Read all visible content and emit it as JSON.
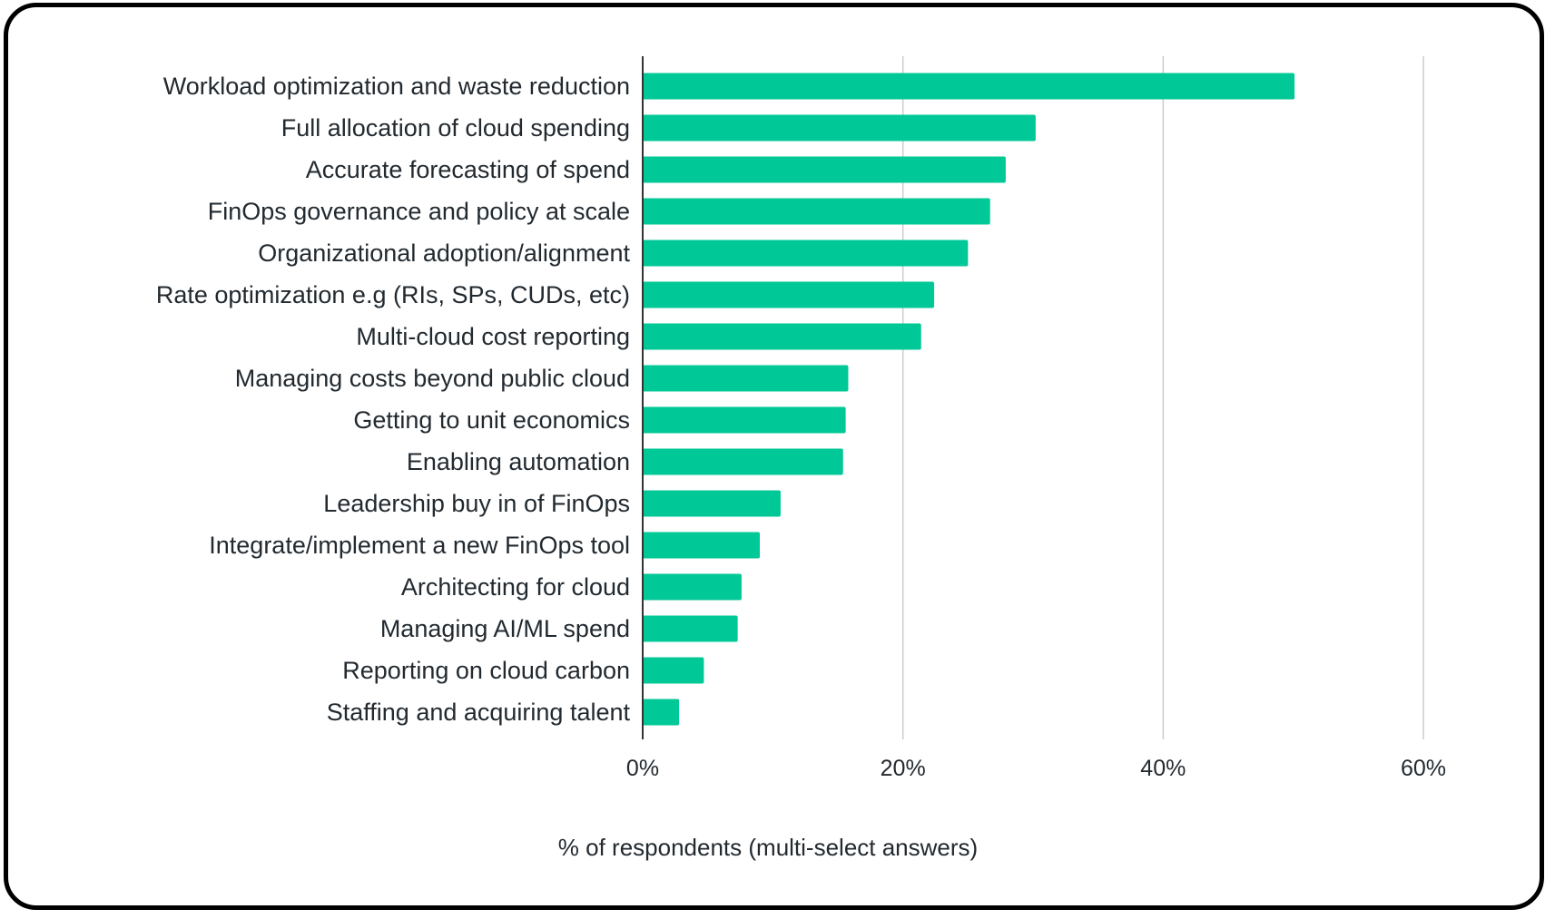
{
  "chart_data": {
    "type": "bar",
    "orientation": "horizontal",
    "title": "",
    "categories": [
      "Workload optimization and waste reduction",
      "Full allocation of cloud spending",
      "Accurate forecasting of spend",
      "FinOps governance and policy at scale",
      "Organizational adoption/alignment",
      "Rate optimization e.g (RIs, SPs, CUDs, etc)",
      "Multi-cloud cost reporting",
      "Managing costs beyond public cloud",
      "Getting to unit economics",
      "Enabling automation",
      "Leadership buy in of FinOps",
      "Integrate/implement a new FinOps tool",
      "Architecting for cloud",
      "Managing AI/ML spend",
      "Reporting on cloud carbon",
      "Staffing and acquiring talent"
    ],
    "values": [
      50.1,
      30.2,
      27.9,
      26.7,
      25.0,
      22.4,
      21.4,
      15.8,
      15.6,
      15.4,
      10.6,
      9.0,
      7.6,
      7.3,
      4.7,
      2.8
    ],
    "xlabel": "% of respondents (multi-select answers)",
    "ylabel": "",
    "xlim": [
      0,
      60
    ],
    "ticks": [
      0,
      20,
      40,
      60
    ],
    "tick_labels": [
      "0%",
      "20%",
      "40%",
      "60%"
    ],
    "grid": true,
    "colors": {
      "bar": "#00c896",
      "grid": "#cccccc",
      "axis": "#333333",
      "text": "#222a30"
    }
  }
}
